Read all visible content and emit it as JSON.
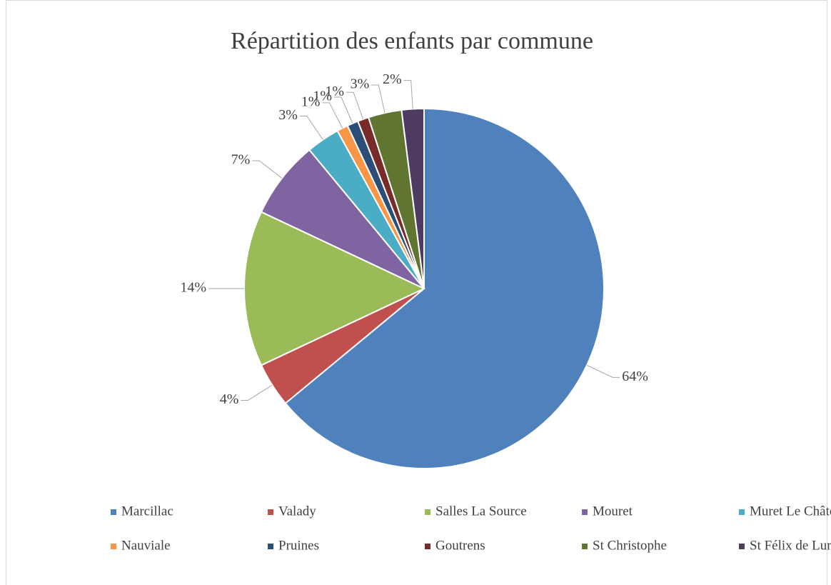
{
  "chart_data": {
    "type": "pie",
    "title": "Répartition des enfants par commune",
    "categories": [
      "Marcillac",
      "Valady",
      "Salles La Source",
      "Mouret",
      "Muret Le Château",
      "Nauviale",
      "Pruines",
      "Goutrens",
      "St Christophe",
      "St Félix de Lunel"
    ],
    "values": [
      64,
      4,
      14,
      7,
      3,
      1,
      1,
      1,
      3,
      2
    ],
    "value_labels": [
      "64%",
      "4%",
      "14%",
      "7%",
      "3%",
      "1%",
      "1%",
      "1%",
      "3%",
      "2%"
    ],
    "colors": [
      "#4f81bd",
      "#c0504d",
      "#9bbb59",
      "#8064a2",
      "#4bacc6",
      "#f79646",
      "#2c4d75",
      "#772c2a",
      "#5f7530",
      "#4d3b62"
    ],
    "legend": "bottom"
  }
}
